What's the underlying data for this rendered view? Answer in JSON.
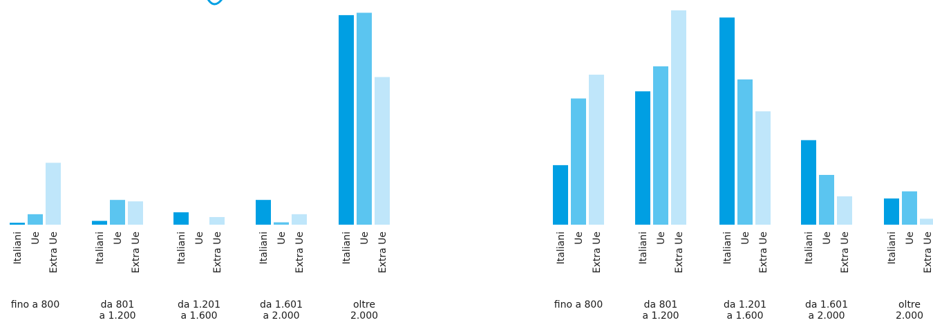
{
  "colors": {
    "Italiani": "#009fe3",
    "Ue": "#5bc5f0",
    "Extra Ue": "#bfe6fa"
  },
  "chart_data": [
    {
      "type": "bar",
      "categories": [
        [
          "fino a 800"
        ],
        [
          "da 801",
          "a 1.200"
        ],
        [
          "da 1.201",
          "a 1.600"
        ],
        [
          "da 1.601",
          "a 2.000"
        ],
        [
          "oltre",
          "2.000"
        ]
      ],
      "series": [
        {
          "name": "Italiani",
          "values": [
            0.8,
            1.6,
            5.2,
            10.4,
            88.0
          ]
        },
        {
          "name": "Ue",
          "values": [
            4.4,
            10.4,
            0.0,
            1.0,
            89.0
          ]
        },
        {
          "name": "Extra Ue",
          "values": [
            26.0,
            9.8,
            3.2,
            4.4,
            62.0
          ]
        }
      ],
      "ylim": [
        0,
        90
      ],
      "grid": false
    },
    {
      "type": "bar",
      "categories": [
        [
          "fino a 800"
        ],
        [
          "da 801",
          "a 1.200"
        ],
        [
          "da 1.201",
          "a 1.600"
        ],
        [
          "da 1.601",
          "a 2.000"
        ],
        [
          "oltre",
          "2.000"
        ]
      ],
      "series": [
        {
          "name": "Italiani",
          "values": [
            25.0,
            56.0,
            87.0,
            35.5,
            11.0
          ]
        },
        {
          "name": "Ue",
          "values": [
            53.0,
            66.5,
            61.0,
            20.9,
            14.0
          ]
        },
        {
          "name": "Extra Ue",
          "values": [
            63.0,
            90.0,
            47.6,
            11.9,
            2.5
          ]
        }
      ],
      "ylim": [
        0,
        90
      ],
      "grid": false
    }
  ]
}
